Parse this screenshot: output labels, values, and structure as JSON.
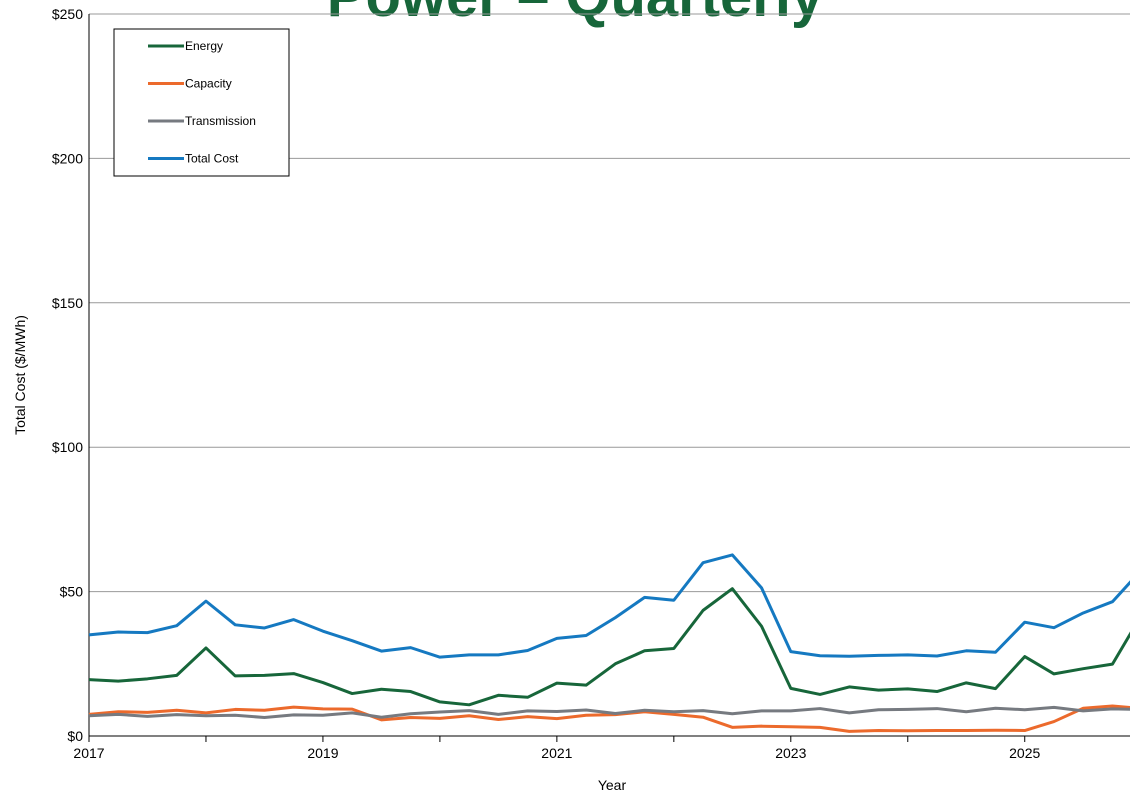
{
  "chart_data": {
    "type": "line",
    "title": "Power – Quarterly",
    "x_label": "Year",
    "y_label": "Total Cost ($/MWh)",
    "x": [
      2017,
      2017.25,
      2017.5,
      2017.75,
      2018,
      2018.25,
      2018.5,
      2018.75,
      2019,
      2019.25,
      2019.5,
      2019.75,
      2020,
      2020.25,
      2020.5,
      2020.75,
      2021,
      2021.25,
      2021.5,
      2021.75,
      2022,
      2022.25,
      2022.5,
      2022.75,
      2023,
      2023.25,
      2023.5,
      2023.75,
      2024,
      2024.25,
      2024.5,
      2024.75,
      2025,
      2025.25,
      2025.5,
      2025.75,
      2026
    ],
    "series": [
      {
        "name": "Energy",
        "color": "#17663a",
        "values": [
          19.5,
          19,
          19.8,
          21,
          30.5,
          20.8,
          21,
          21.6,
          18.5,
          14.7,
          16.2,
          15.4,
          11.8,
          10.8,
          14.1,
          13.4,
          18.3,
          17.6,
          25,
          29.5,
          30.3,
          43.5,
          51,
          38,
          16.5,
          14.4,
          17,
          15.9,
          16.3,
          15.4,
          18.4,
          16.4,
          27.5,
          21.5,
          23.3,
          24.9,
          42
        ]
      },
      {
        "name": "Capacity",
        "color": "#ec6a2c",
        "values": [
          7.5,
          8.4,
          8.2,
          8.9,
          8,
          9.2,
          8.9,
          10,
          9.4,
          9.3,
          5.6,
          6.4,
          6.1,
          7,
          5.7,
          6.7,
          6,
          7.2,
          7.4,
          8.4,
          7.5,
          6.5,
          3,
          3.4,
          3.2,
          3,
          1.6,
          1.9,
          1.8,
          1.9,
          1.9,
          2,
          1.9,
          5,
          9.6,
          10.4,
          9.5
        ]
      },
      {
        "name": "Transmission",
        "color": "#767a80",
        "values": [
          7,
          7.5,
          6.8,
          7.4,
          7,
          7.2,
          6.4,
          7.3,
          7.2,
          8,
          6.5,
          7.7,
          8.3,
          8.8,
          7.5,
          8.7,
          8.5,
          9,
          7.8,
          8.9,
          8.4,
          8.8,
          7.7,
          8.7,
          8.7,
          9.5,
          8,
          9.1,
          9.2,
          9.5,
          8.4,
          9.6,
          9.1,
          9.9,
          8.7,
          9.4,
          9.2
        ]
      },
      {
        "name": "Total Cost",
        "color": "#1579c1",
        "values": [
          35,
          36,
          35.8,
          38.2,
          46.7,
          38.5,
          37.4,
          40.3,
          36.3,
          33,
          29.4,
          30.6,
          27.3,
          28.1,
          28.1,
          29.6,
          33.8,
          34.8,
          41,
          48,
          47,
          60,
          62.7,
          51.3,
          29.2,
          27.8,
          27.6,
          27.9,
          28.1,
          27.7,
          29.5,
          29,
          39.4,
          37.5,
          42.6,
          46.5,
          57.6
        ]
      }
    ],
    "xlim": [
      2017,
      2025.9
    ],
    "xticks": [
      2017,
      2019,
      2021,
      2023,
      2025
    ],
    "xminor_ticks": [
      2018,
      2020,
      2022,
      2024
    ],
    "ylim": [
      0,
      250
    ],
    "yticks": [
      {
        "value": 0,
        "label": "$0"
      },
      {
        "value": 50,
        "label": "$50"
      },
      {
        "value": 100,
        "label": "$100"
      },
      {
        "value": 150,
        "label": "$150"
      },
      {
        "value": 200,
        "label": "$200"
      },
      {
        "value": 250,
        "label": "$250"
      }
    ],
    "grid": true,
    "legend": "upper left"
  }
}
